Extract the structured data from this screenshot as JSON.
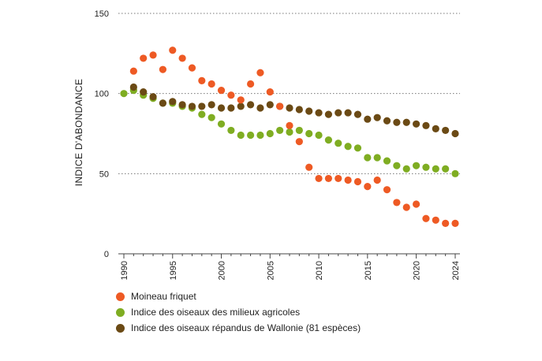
{
  "chart_data": {
    "type": "scatter",
    "title": "",
    "xlabel": "",
    "ylabel": "INDICE D'ABONDANCE",
    "ylim": [
      0,
      150
    ],
    "xlim": [
      1990,
      2024
    ],
    "yticks": [
      0,
      50,
      100,
      150
    ],
    "xticks": [
      1990,
      1995,
      2000,
      2005,
      2010,
      2015,
      2020,
      2024
    ],
    "grid": "horizontal dotted",
    "legend_position": "bottom-left",
    "series": [
      {
        "name": "Moineau friquet",
        "color": "#ee5a24",
        "x": [
          1991,
          1992,
          1993,
          1994,
          1995,
          1996,
          1997,
          1998,
          1999,
          2000,
          2001,
          2002,
          2003,
          2004,
          2005,
          2006,
          2007,
          2008,
          2009,
          2010,
          2011,
          2012,
          2013,
          2014,
          2015,
          2016,
          2017,
          2018,
          2019,
          2020,
          2021,
          2022,
          2023,
          2024
        ],
        "values": [
          114,
          122,
          124,
          115,
          127,
          122,
          116,
          108,
          106,
          102,
          99,
          96,
          106,
          113,
          101,
          92,
          80,
          70,
          54,
          47,
          47,
          47,
          46,
          45,
          42,
          46,
          40,
          32,
          29,
          31,
          22,
          21,
          19,
          19
        ]
      },
      {
        "name": "Indice des oiseaux des milieux agricoles",
        "color": "#7fad22",
        "x": [
          1990,
          1991,
          1992,
          1993,
          1994,
          1995,
          1996,
          1997,
          1998,
          1999,
          2000,
          2001,
          2002,
          2003,
          2004,
          2005,
          2006,
          2007,
          2008,
          2009,
          2010,
          2011,
          2012,
          2013,
          2014,
          2015,
          2016,
          2017,
          2018,
          2019,
          2020,
          2021,
          2022,
          2023,
          2024
        ],
        "values": [
          100,
          102,
          99,
          97,
          94,
          94,
          92,
          91,
          87,
          85,
          81,
          77,
          74,
          74,
          74,
          75,
          77,
          76,
          77,
          75,
          74,
          71,
          69,
          67,
          66,
          60,
          60,
          58,
          55,
          53,
          55,
          54,
          53,
          53,
          50
        ]
      },
      {
        "name": "Indice des oiseaux répandus de Wallonie (81 espèces)",
        "color": "#6b4a15",
        "x": [
          1991,
          1992,
          1993,
          1994,
          1995,
          1996,
          1997,
          1998,
          1999,
          2000,
          2001,
          2002,
          2003,
          2004,
          2005,
          2006,
          2007,
          2008,
          2009,
          2010,
          2011,
          2012,
          2013,
          2014,
          2015,
          2016,
          2017,
          2018,
          2019,
          2020,
          2021,
          2022,
          2023,
          2024
        ],
        "values": [
          104,
          101,
          98,
          94,
          95,
          93,
          92,
          92,
          93,
          91,
          91,
          92,
          93,
          91,
          93,
          92,
          91,
          90,
          89,
          88,
          87,
          88,
          88,
          87,
          84,
          85,
          83,
          82,
          82,
          81,
          80,
          78,
          77,
          75
        ]
      }
    ]
  }
}
